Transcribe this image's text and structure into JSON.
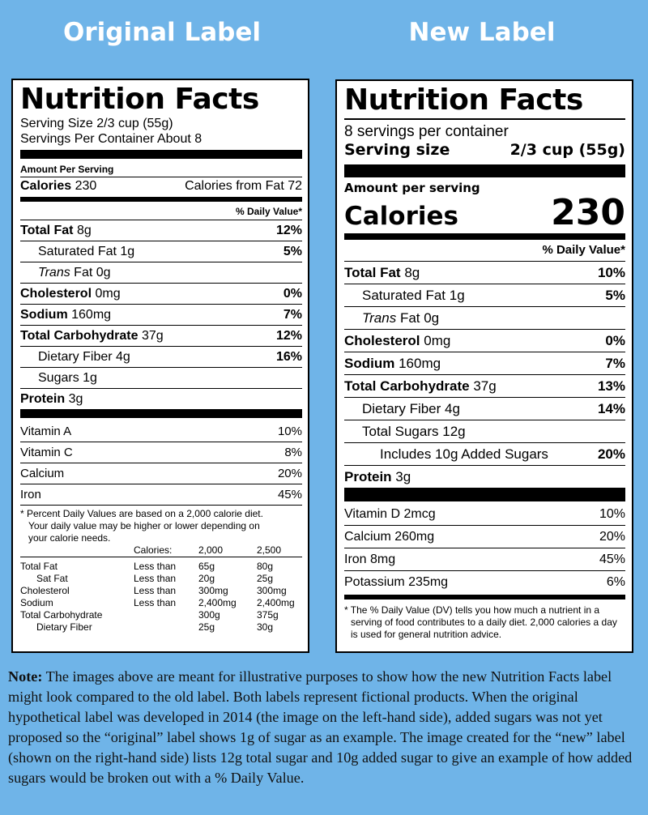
{
  "headings": {
    "original": "Original Label",
    "new": "New Label"
  },
  "original": {
    "title": "Nutrition Facts",
    "serving_size": "Serving Size 2/3 cup (55g)",
    "servings_per_container": "Servings Per Container About 8",
    "amount_per_serving": "Amount Per Serving",
    "calories_label": "Calories",
    "calories_value": "230",
    "calories_from_fat": "Calories from Fat 72",
    "dv_header": "% Daily Value*",
    "nutrients": [
      {
        "name": "Total Fat",
        "amount": "8g",
        "dv": "12%"
      },
      {
        "name": "Saturated Fat",
        "amount": "1g",
        "dv": "5%"
      },
      {
        "name": "Trans",
        "amount": "Fat 0g",
        "dv": ""
      },
      {
        "name": "Cholesterol",
        "amount": "0mg",
        "dv": "0%"
      },
      {
        "name": "Sodium",
        "amount": "160mg",
        "dv": "7%"
      },
      {
        "name": "Total Carbohydrate",
        "amount": "37g",
        "dv": "12%"
      },
      {
        "name": "Dietary Fiber",
        "amount": "4g",
        "dv": "16%"
      },
      {
        "name": "Sugars",
        "amount": "1g",
        "dv": ""
      },
      {
        "name": "Protein",
        "amount": "3g",
        "dv": ""
      }
    ],
    "vitamins": [
      {
        "name": "Vitamin A",
        "dv": "10%"
      },
      {
        "name": "Vitamin C",
        "dv": "8%"
      },
      {
        "name": "Calcium",
        "dv": "20%"
      },
      {
        "name": "Iron",
        "dv": "45%"
      }
    ],
    "footnote_1": "* Percent Daily Values are based on a 2,000 calorie diet.",
    "footnote_2": "Your daily value may be higher or lower depending on",
    "footnote_3": "your calorie needs.",
    "ref_header": {
      "label": "Calories:",
      "c1": "2,000",
      "c2": "2,500"
    },
    "ref_rows": [
      {
        "name": "Total Fat",
        "cmp": "Less than",
        "c1": "65g",
        "c2": "80g"
      },
      {
        "name": "Sat Fat",
        "cmp": "Less than",
        "c1": "20g",
        "c2": "25g"
      },
      {
        "name": "Cholesterol",
        "cmp": "Less than",
        "c1": "300mg",
        "c2": "300mg"
      },
      {
        "name": "Sodium",
        "cmp": "Less than",
        "c1": "2,400mg",
        "c2": "2,400mg"
      },
      {
        "name": "Total Carbohydrate",
        "cmp": "",
        "c1": "300g",
        "c2": "375g"
      },
      {
        "name": "Dietary Fiber",
        "cmp": "",
        "c1": "25g",
        "c2": "30g"
      }
    ]
  },
  "new": {
    "title": "Nutrition Facts",
    "servings_per_container": "8 servings per container",
    "serving_size_label": "Serving size",
    "serving_size_value": "2/3 cup (55g)",
    "amount_per_serving": "Amount per serving",
    "calories_label": "Calories",
    "calories_value": "230",
    "dv_header": "% Daily Value*",
    "nutrients": [
      {
        "name": "Total Fat",
        "amount": "8g",
        "dv": "10%"
      },
      {
        "name": "Saturated Fat",
        "amount": "1g",
        "dv": "5%"
      },
      {
        "name": "Trans",
        "amount": "Fat 0g",
        "dv": ""
      },
      {
        "name": "Cholesterol",
        "amount": "0mg",
        "dv": "0%"
      },
      {
        "name": "Sodium",
        "amount": "160mg",
        "dv": "7%"
      },
      {
        "name": "Total Carbohydrate",
        "amount": "37g",
        "dv": "13%"
      },
      {
        "name": "Dietary Fiber",
        "amount": "4g",
        "dv": "14%"
      },
      {
        "name": "Total Sugars",
        "amount": "12g",
        "dv": ""
      },
      {
        "name": "Includes 10g Added Sugars",
        "amount": "",
        "dv": "20%"
      },
      {
        "name": "Protein",
        "amount": "3g",
        "dv": ""
      }
    ],
    "vitamins": [
      {
        "name": "Vitamin D 2mcg",
        "dv": "10%"
      },
      {
        "name": "Calcium 260mg",
        "dv": "20%"
      },
      {
        "name": "Iron 8mg",
        "dv": "45%"
      },
      {
        "name": "Potassium 235mg",
        "dv": "6%"
      }
    ],
    "footnote": "* The % Daily Value (DV) tells you how much a nutrient in a serving of food contributes to a daily diet. 2,000 calories a day is used for general nutrition advice."
  },
  "note": {
    "label": "Note:",
    "text": "The images above are meant for illustrative purposes to show how the new Nutrition Facts label might look compared to the old label. Both labels represent fictional products. When the original hypothetical label was developed in 2014 (the image on the left-hand side), added sugars was not yet proposed so the “original” label shows 1g of sugar as an example. The image created for the “new” label (shown on the right-hand side) lists 12g total sugar and 10g added sugar to give an example of how added sugars would be broken out with a % Daily Value."
  }
}
